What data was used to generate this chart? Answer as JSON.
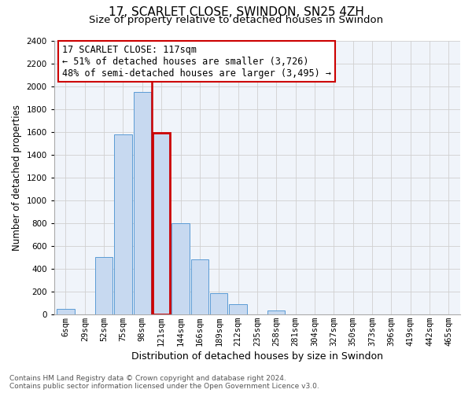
{
  "title": "17, SCARLET CLOSE, SWINDON, SN25 4ZH",
  "subtitle": "Size of property relative to detached houses in Swindon",
  "xlabel": "Distribution of detached houses by size in Swindon",
  "ylabel": "Number of detached properties",
  "bar_labels": [
    "6sqm",
    "29sqm",
    "52sqm",
    "75sqm",
    "98sqm",
    "121sqm",
    "144sqm",
    "166sqm",
    "189sqm",
    "212sqm",
    "235sqm",
    "258sqm",
    "281sqm",
    "304sqm",
    "327sqm",
    "350sqm",
    "373sqm",
    "396sqm",
    "419sqm",
    "442sqm",
    "465sqm"
  ],
  "bar_heights": [
    50,
    0,
    500,
    1575,
    1950,
    1590,
    800,
    480,
    185,
    90,
    0,
    30,
    0,
    0,
    0,
    0,
    0,
    0,
    0,
    0,
    0
  ],
  "bar_color": "#c7d9f0",
  "bar_edgecolor": "#5b9bd5",
  "highlight_bar_index": 5,
  "highlight_edgecolor": "#cc0000",
  "vline_x": 4.5,
  "vline_color": "#cc0000",
  "ylim": [
    0,
    2400
  ],
  "yticks": [
    0,
    200,
    400,
    600,
    800,
    1000,
    1200,
    1400,
    1600,
    1800,
    2000,
    2200,
    2400
  ],
  "annotation_title": "17 SCARLET CLOSE: 117sqm",
  "annotation_line1": "← 51% of detached houses are smaller (3,726)",
  "annotation_line2": "48% of semi-detached houses are larger (3,495) →",
  "annotation_box_color": "#ffffff",
  "annotation_box_edgecolor": "#cc0000",
  "footer_line1": "Contains HM Land Registry data © Crown copyright and database right 2024.",
  "footer_line2": "Contains public sector information licensed under the Open Government Licence v3.0.",
  "title_fontsize": 11,
  "subtitle_fontsize": 9.5,
  "xlabel_fontsize": 9,
  "ylabel_fontsize": 8.5,
  "tick_fontsize": 7.5,
  "annotation_fontsize": 8.5,
  "footer_fontsize": 6.5,
  "grid_color": "#d0d0d0"
}
